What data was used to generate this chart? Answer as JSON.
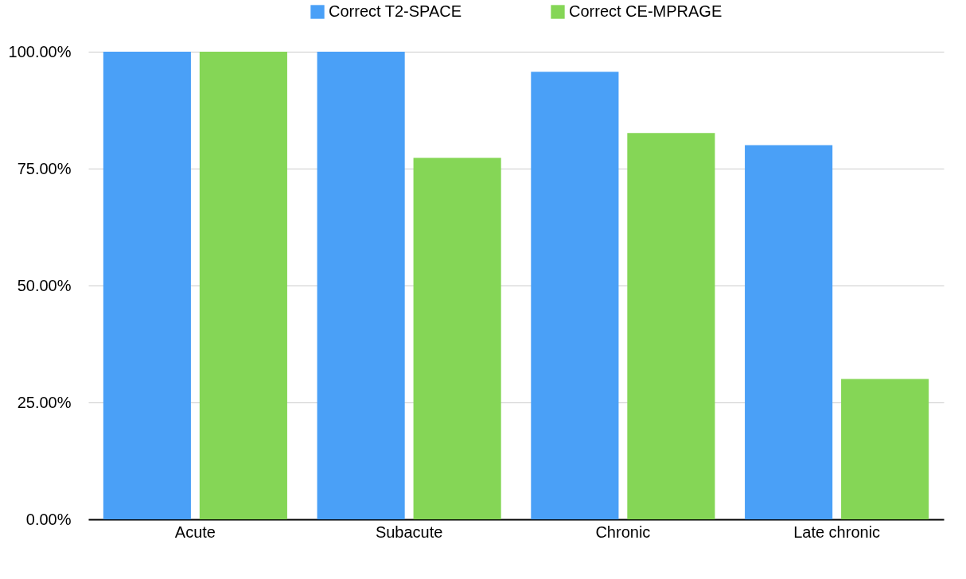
{
  "chart_data": {
    "type": "bar",
    "categories": [
      "Acute",
      "Subacute",
      "Chronic",
      "Late chronic"
    ],
    "series": [
      {
        "name": "Correct T2-SPACE",
        "color": "#4aa0f7",
        "values": [
          100,
          100,
          95.7,
          80
        ]
      },
      {
        "name": "Correct CE-MPRAGE",
        "color": "#85d656",
        "values": [
          100,
          77.3,
          82.6,
          30
        ]
      }
    ],
    "ylim": [
      0,
      100
    ],
    "yticks": [
      {
        "value": 0,
        "label": "0.00%"
      },
      {
        "value": 25,
        "label": "25.00%"
      },
      {
        "value": 50,
        "label": "50.00%"
      },
      {
        "value": 75,
        "label": "75.00%"
      },
      {
        "value": 100,
        "label": "100.00%"
      }
    ],
    "grid": "y",
    "legend": "top"
  }
}
